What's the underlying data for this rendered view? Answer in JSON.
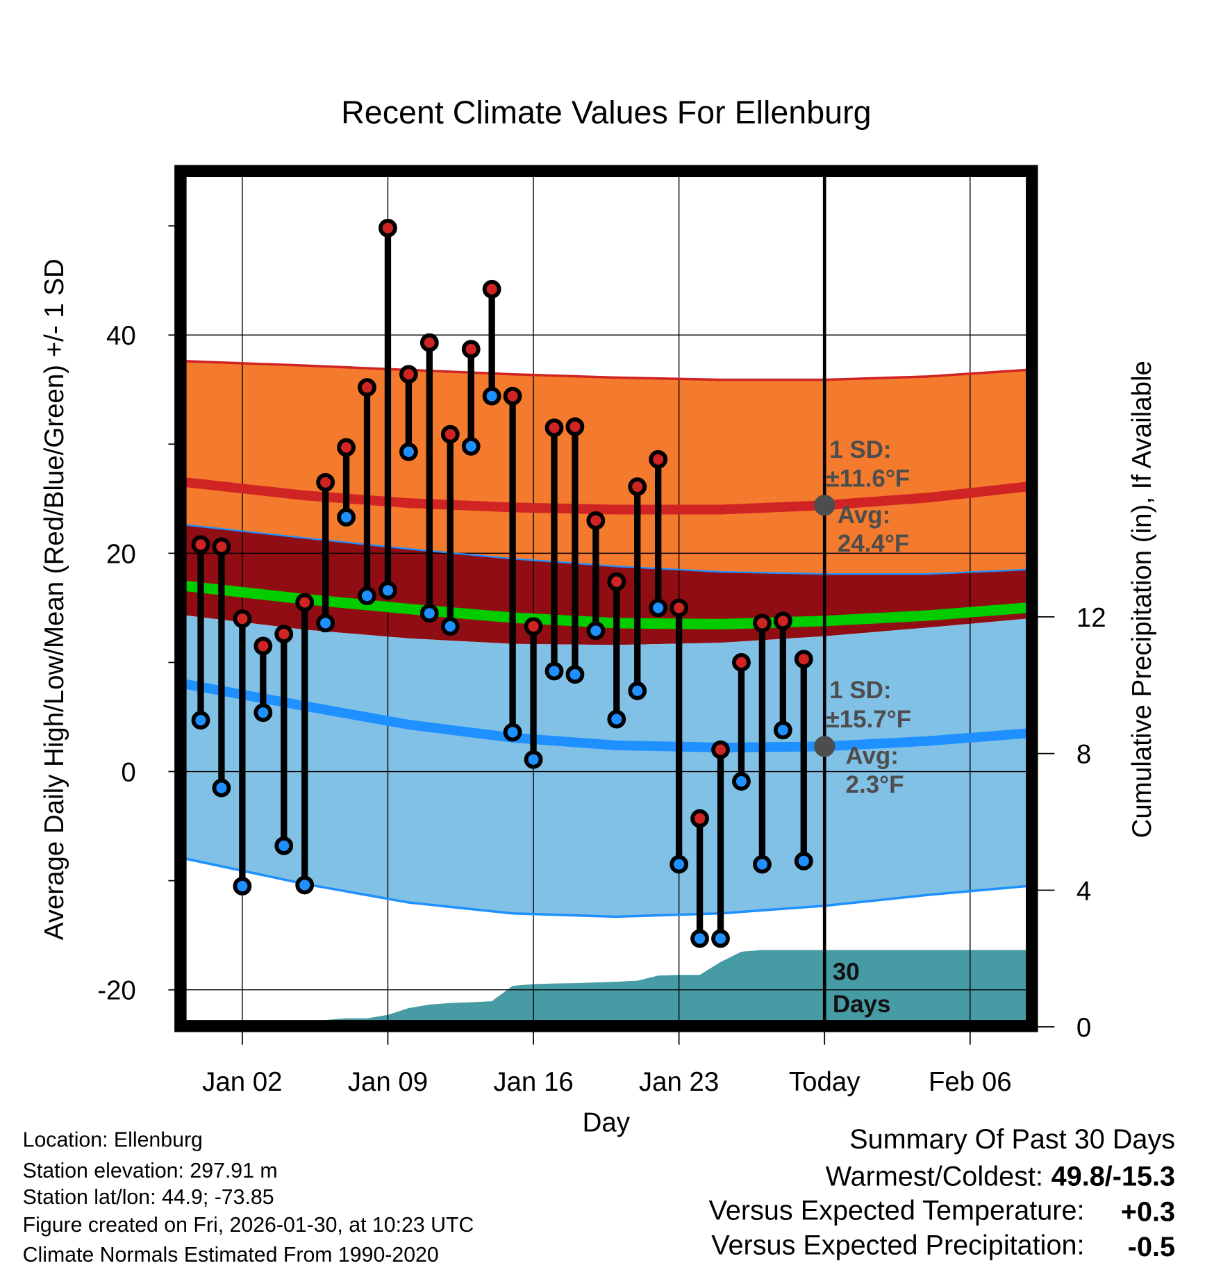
{
  "chart_data": {
    "type": "line",
    "title": "Recent Climate Values For Ellenburg",
    "xlabel": "Day",
    "ylabel": "Average Daily High/Low/Mean (Red/Blue/Green) +/- 1 SD",
    "y2label": "Cumulative Precipitation (in), If Available",
    "ylim": [
      -22.8,
      54.5
    ],
    "y2lim": [
      0,
      24.9
    ],
    "yticks": [
      -20,
      0,
      20,
      40
    ],
    "ytick_labels": [
      "-20",
      "0",
      "20",
      "40"
    ],
    "y2ticks": [
      0,
      4,
      8,
      12
    ],
    "y2tick_labels": [
      "0",
      "4",
      "8",
      "12"
    ],
    "xlim_day": [
      -0.7,
      39.7
    ],
    "xticks_day": [
      2,
      9,
      16,
      23,
      30,
      37
    ],
    "xtick_labels": [
      "Jan 02",
      "Jan 09",
      "Jan 16",
      "Jan 23",
      "Today",
      "Feb 06"
    ],
    "today_day": 30,
    "grid": true,
    "observed": {
      "days": [
        0,
        1,
        2,
        3,
        4,
        5,
        6,
        7,
        8,
        9,
        10,
        11,
        12,
        13,
        14,
        15,
        16,
        17,
        18,
        19,
        20,
        21,
        22,
        23,
        24,
        25,
        26,
        27,
        28,
        29
      ],
      "highs": [
        20.8,
        20.6,
        14.0,
        11.5,
        12.6,
        15.5,
        26.5,
        29.7,
        35.2,
        49.8,
        36.4,
        39.3,
        30.9,
        38.7,
        44.2,
        34.4,
        13.3,
        31.5,
        31.6,
        23.0,
        17.4,
        26.1,
        28.6,
        15.0,
        -4.3,
        2.0,
        10.0,
        13.6,
        13.8,
        10.3
      ],
      "lows": [
        4.7,
        -1.5,
        -10.5,
        5.4,
        -6.8,
        -10.4,
        13.6,
        23.3,
        16.1,
        16.6,
        29.3,
        14.5,
        13.3,
        29.8,
        34.4,
        3.6,
        1.1,
        9.2,
        8.9,
        12.9,
        4.8,
        7.4,
        15.0,
        -8.5,
        -15.3,
        -15.3,
        -0.9,
        -8.5,
        3.8,
        -8.2
      ]
    },
    "normals": {
      "days": [
        -0.7,
        5,
        10,
        15,
        20,
        25,
        30,
        35,
        39.7
      ],
      "high_plus_sd": [
        37.6,
        37.2,
        36.8,
        36.4,
        36.1,
        35.9,
        35.9,
        36.2,
        36.8
      ],
      "avg_high": [
        26.5,
        25.3,
        24.6,
        24.2,
        24.0,
        24.0,
        24.4,
        25.1,
        26.1
      ],
      "high_minus_sd": [
        22.6,
        21.4,
        20.4,
        19.5,
        18.8,
        18.3,
        18.1,
        18.1,
        18.5
      ],
      "mean": [
        17.0,
        15.8,
        14.9,
        14.1,
        13.6,
        13.5,
        13.8,
        14.3,
        15.0
      ],
      "low_plus_sd": [
        14.3,
        13.0,
        12.2,
        11.7,
        11.6,
        11.8,
        12.4,
        13.2,
        14.0
      ],
      "avg_low": [
        8.0,
        6.0,
        4.3,
        3.1,
        2.4,
        2.2,
        2.3,
        2.8,
        3.5
      ],
      "low_minus_sd": [
        -8.0,
        -10.3,
        -12.0,
        -13.0,
        -13.3,
        -13.0,
        -12.3,
        -11.3,
        -10.5
      ]
    },
    "precip": {
      "days": [
        5,
        6,
        7,
        8,
        9,
        10,
        11,
        12,
        13,
        14,
        15,
        16,
        17,
        18,
        19,
        20,
        21,
        22,
        23,
        24,
        25,
        26,
        27,
        28,
        29,
        30,
        39.7
      ],
      "cumulative": [
        0,
        0.2,
        0.25,
        0.25,
        0.35,
        0.55,
        0.65,
        0.7,
        0.72,
        0.75,
        1.2,
        1.25,
        1.27,
        1.28,
        1.3,
        1.32,
        1.35,
        1.5,
        1.52,
        1.52,
        1.9,
        2.2,
        2.25,
        2.25,
        2.25,
        2.25,
        2.25
      ],
      "label_line1": "30",
      "label_line2": "Days"
    },
    "annotations": {
      "high_sd_line1": "1 SD:",
      "high_sd_line2": "±11.6°F",
      "high_avg_line1": "Avg:",
      "high_avg_line2": "24.4°F",
      "high_avg_value": 24.4,
      "low_sd_line1": "1 SD:",
      "low_sd_line2": "±15.7°F",
      "low_avg_line1": "Avg:",
      "low_avg_line2": "2.3°F",
      "low_avg_value": 2.3
    },
    "colors": {
      "orange": "#f47a2d",
      "darkred": "#910d14",
      "red": "#d02424",
      "green": "#00cc00",
      "lightblue": "#82c1e6",
      "blue": "#1e90ff",
      "teal": "#479ba4",
      "ann": "#4d4d4d"
    }
  },
  "footer": {
    "location": "Location: Ellenburg",
    "elevation": "Station elevation: 297.91 m",
    "latlon": "Station lat/lon: 44.9; -73.85",
    "created": "Figure created on Fri, 2026-01-30, at 10:23 UTC",
    "normals": "Climate Normals Estimated From 1990-2020"
  },
  "summary": {
    "title": "Summary Of Past 30 Days",
    "warmest_label": "Warmest/Coldest:",
    "warmest_value": "49.8/-15.3",
    "temp_label": "Versus Expected Temperature:",
    "temp_value": "+0.3",
    "temp_color": "#d02424",
    "precip_label": "Versus Expected Precipitation:",
    "precip_value": "-0.5",
    "precip_color": "#a0522d"
  }
}
